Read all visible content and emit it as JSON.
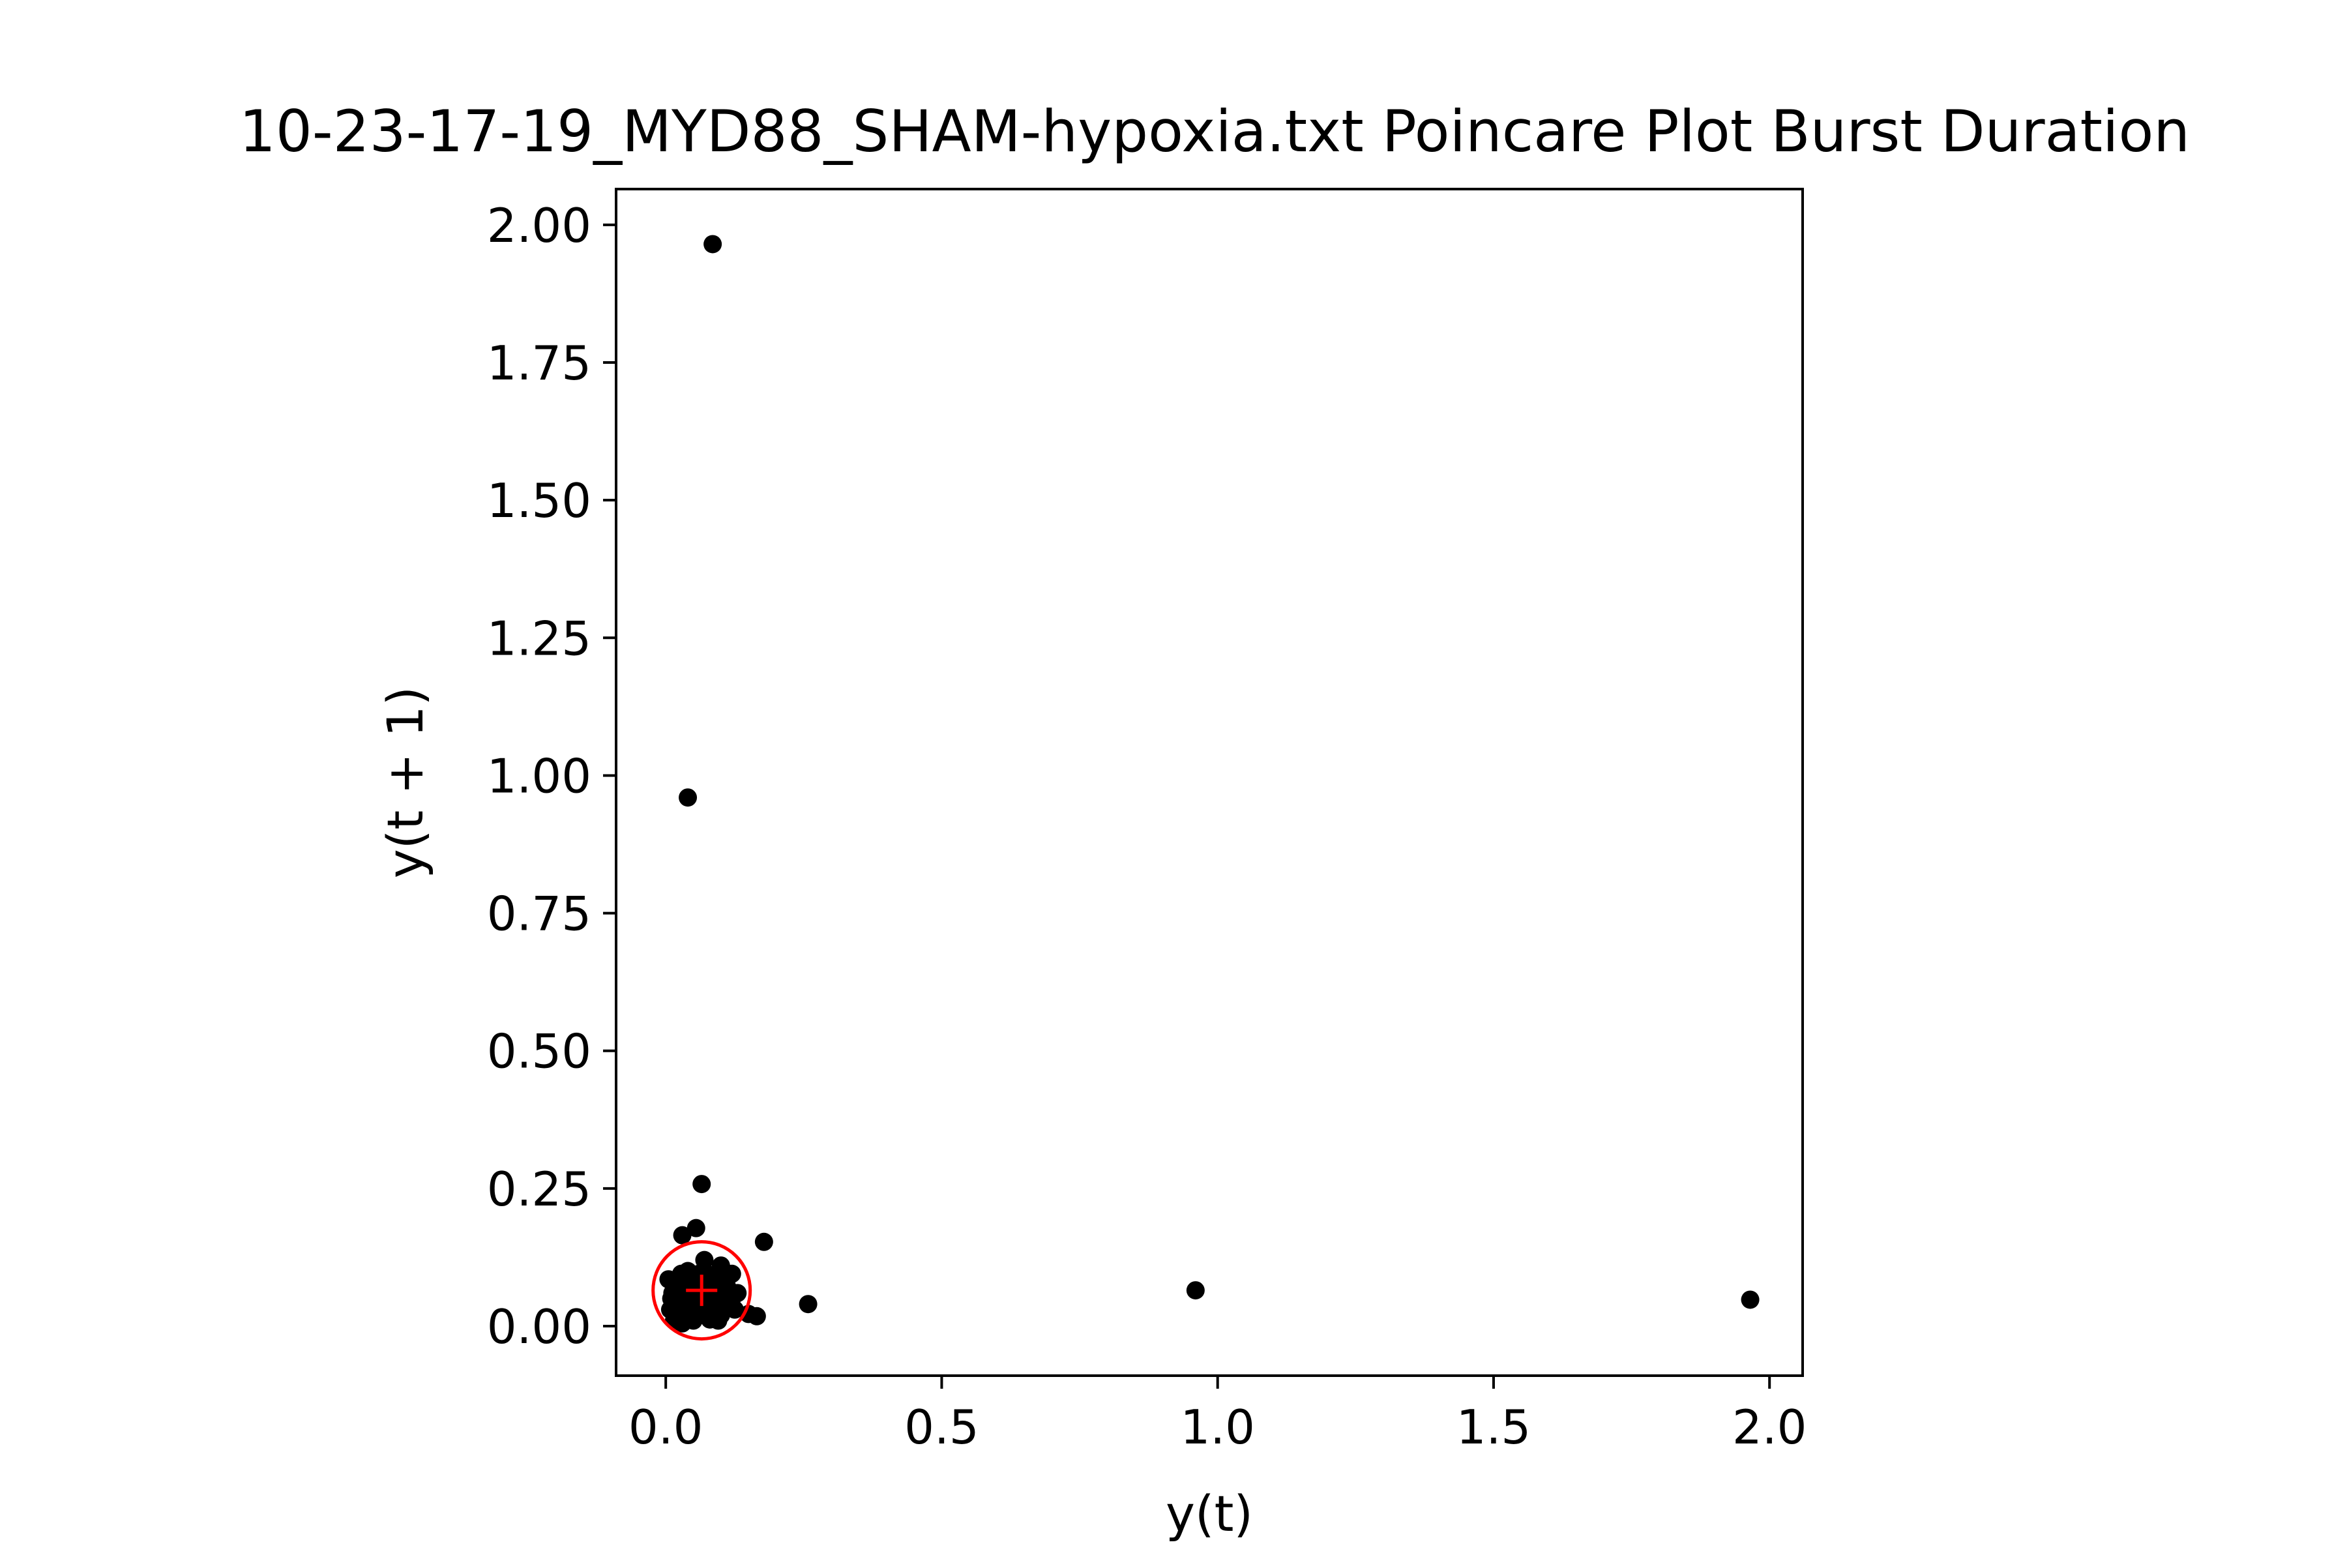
{
  "chart_data": {
    "type": "scatter",
    "title": "10-23-17-19_MYD88_SHAM-hypoxia.txt Poincare Plot Burst Duration",
    "xlabel": "y(t)",
    "ylabel": "y(t + 1)",
    "xlim": [
      -0.09,
      2.06
    ],
    "ylim": [
      -0.09,
      2.065
    ],
    "grid": false,
    "x_ticks": [
      0.0,
      0.5,
      1.0,
      1.5,
      2.0
    ],
    "x_tick_labels": [
      "0.0",
      "0.5",
      "1.0",
      "1.5",
      "2.0"
    ],
    "y_ticks": [
      0.0,
      0.25,
      0.5,
      0.75,
      1.0,
      1.25,
      1.5,
      1.75,
      2.0
    ],
    "y_tick_labels": [
      "0.00",
      "0.25",
      "0.50",
      "0.75",
      "1.00",
      "1.25",
      "1.50",
      "1.75",
      "2.00"
    ],
    "series": [
      {
        "marker_color": "#000000",
        "points": [
          [
            0.085,
            1.965
          ],
          [
            0.04,
            0.96
          ],
          [
            0.065,
            0.258
          ],
          [
            0.055,
            0.178
          ],
          [
            0.03,
            0.165
          ],
          [
            0.178,
            0.153
          ],
          [
            0.96,
            0.065
          ],
          [
            1.965,
            0.048
          ],
          [
            0.258,
            0.04
          ],
          [
            0.165,
            0.018
          ],
          [
            0.15,
            0.022
          ],
          [
            0.005,
            0.085
          ],
          [
            0.07,
            0.12
          ],
          [
            0.1,
            0.11
          ],
          [
            0.12,
            0.095
          ],
          [
            0.11,
            0.075
          ],
          [
            0.04,
            0.1
          ],
          [
            0.02,
            0.07
          ],
          [
            0.01,
            0.05
          ],
          [
            0.008,
            0.03
          ],
          [
            0.015,
            0.01
          ],
          [
            0.03,
            0.005
          ],
          [
            0.05,
            0.01
          ],
          [
            0.08,
            0.012
          ],
          [
            0.1,
            0.02
          ],
          [
            0.11,
            0.035
          ],
          [
            0.12,
            0.05
          ],
          [
            0.115,
            0.065
          ],
          [
            0.09,
            0.085
          ],
          [
            0.06,
            0.095
          ],
          [
            0.03,
            0.085
          ],
          [
            0.025,
            0.045
          ],
          [
            0.035,
            0.025
          ],
          [
            0.06,
            0.03
          ],
          [
            0.08,
            0.04
          ],
          [
            0.095,
            0.055
          ],
          [
            0.05,
            0.07
          ],
          [
            0.07,
            0.06
          ],
          [
            0.04,
            0.055
          ],
          [
            0.06,
            0.05
          ],
          [
            0.085,
            0.07
          ],
          [
            0.045,
            0.08
          ],
          [
            0.075,
            0.095
          ],
          [
            0.055,
            0.04
          ],
          [
            0.02,
            0.02
          ],
          [
            0.105,
            0.045
          ],
          [
            0.065,
            0.02
          ],
          [
            0.09,
            0.03
          ],
          [
            0.13,
            0.06
          ],
          [
            0.012,
            0.06
          ],
          [
            0.07,
            0.078
          ],
          [
            0.05,
            0.088
          ],
          [
            0.095,
            0.01
          ],
          [
            0.04,
            0.015
          ],
          [
            0.125,
            0.03
          ],
          [
            0.028,
            0.095
          ]
        ]
      }
    ],
    "overlay": {
      "center": [
        0.065,
        0.065
      ],
      "circle_radius": 0.088,
      "color": "#ff0000"
    }
  }
}
